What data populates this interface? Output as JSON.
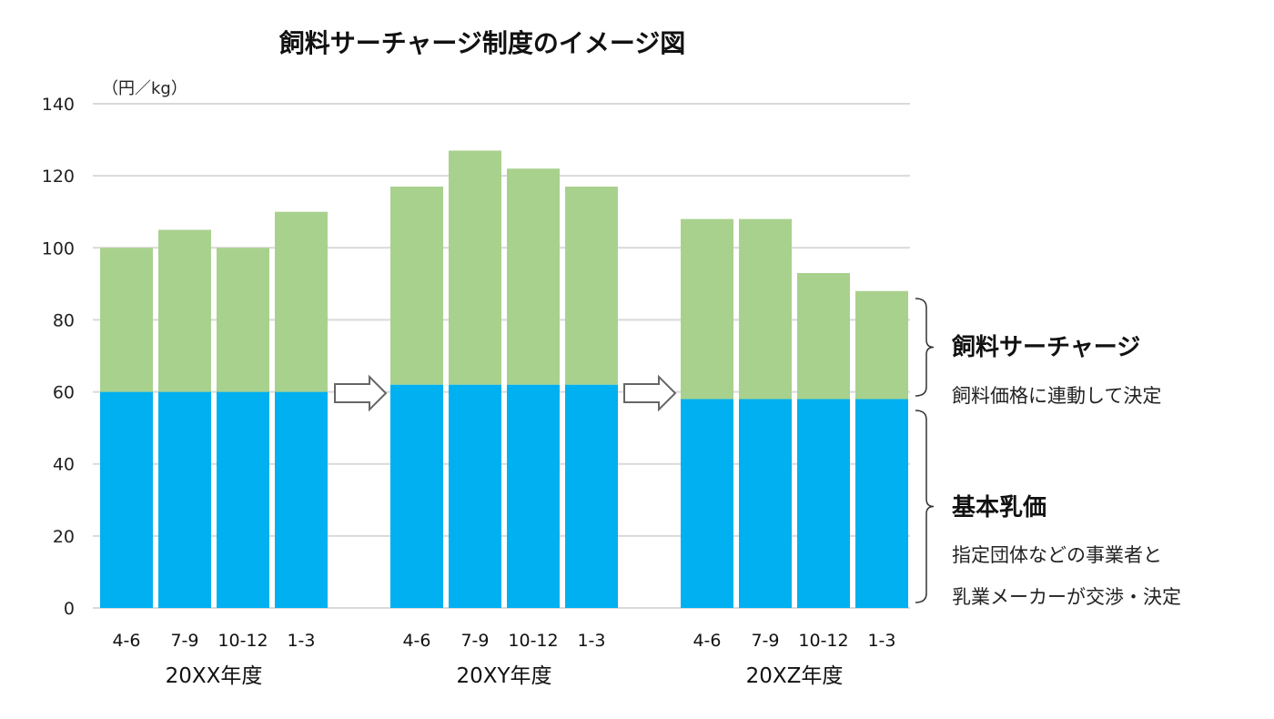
{
  "chart_data": {
    "type": "bar",
    "stacked": true,
    "title": "飼料サーチャージ制度のイメージ図",
    "unit_label": "（円／kg）",
    "ylim": [
      0,
      140
    ],
    "yticks": [
      0,
      20,
      40,
      60,
      80,
      100,
      120,
      140
    ],
    "grid": true,
    "groups": [
      {
        "label": "20XX年度",
        "categories": [
          "4-6",
          "7-9",
          "10-12",
          "1-3"
        ]
      },
      {
        "label": "20XY年度",
        "categories": [
          "4-6",
          "7-9",
          "10-12",
          "1-3"
        ]
      },
      {
        "label": "20XZ年度",
        "categories": [
          "4-6",
          "7-9",
          "10-12",
          "1-3"
        ]
      }
    ],
    "series": [
      {
        "name": "基本乳価",
        "color": "#00b0f0",
        "values": [
          60,
          60,
          60,
          60,
          62,
          62,
          62,
          62,
          58,
          58,
          58,
          58
        ]
      },
      {
        "name": "飼料サーチャージ",
        "color": "#a9d18e",
        "values": [
          40,
          45,
          40,
          50,
          55,
          65,
          60,
          55,
          50,
          50,
          35,
          30
        ]
      }
    ],
    "annotations": {
      "surcharge": {
        "title": "飼料サーチャージ",
        "desc": "飼料価格に連動して決定"
      },
      "base": {
        "title": "基本乳価",
        "desc_lines": [
          "指定団体などの事業者と",
          "乳業メーカーが交渉・決定"
        ]
      }
    }
  }
}
